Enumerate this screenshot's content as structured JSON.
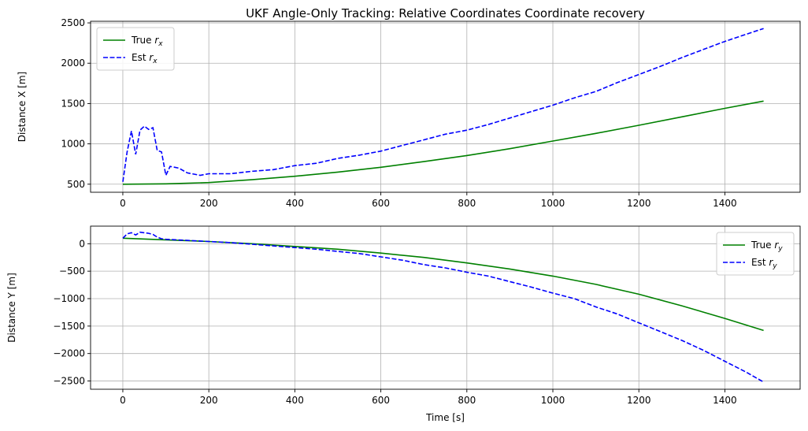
{
  "chart_data": [
    {
      "type": "line",
      "title": "UKF Angle-Only Tracking: Relative Coordinates Coordinate recovery",
      "xlabel": "",
      "ylabel": "Distance X [m]",
      "xlim": [
        -75,
        1575
      ],
      "ylim": [
        400,
        2520
      ],
      "xticks": [
        0,
        200,
        400,
        600,
        800,
        1000,
        1200,
        1400
      ],
      "yticks": [
        500,
        1000,
        1500,
        2000,
        2500
      ],
      "grid": true,
      "legend": "upper-left",
      "series": [
        {
          "name": "True r",
          "subscript": "x",
          "color": "#008000",
          "dash": "solid",
          "x": [
            0,
            100,
            200,
            300,
            400,
            500,
            600,
            700,
            800,
            900,
            1000,
            1100,
            1200,
            1300,
            1400,
            1490
          ],
          "y": [
            500,
            505,
            520,
            555,
            598,
            650,
            710,
            780,
            855,
            940,
            1035,
            1130,
            1230,
            1335,
            1440,
            1530
          ]
        },
        {
          "name": "Est r",
          "subscript": "x",
          "color": "#0000ff",
          "dash": "dashed",
          "x": [
            0,
            10,
            20,
            30,
            40,
            50,
            60,
            70,
            80,
            90,
            100,
            110,
            130,
            150,
            180,
            200,
            250,
            300,
            350,
            400,
            450,
            500,
            550,
            600,
            650,
            700,
            750,
            800,
            850,
            900,
            950,
            1000,
            1050,
            1100,
            1150,
            1200,
            1250,
            1300,
            1350,
            1400,
            1450,
            1490
          ],
          "y": [
            530,
            900,
            1160,
            870,
            1170,
            1220,
            1180,
            1200,
            920,
            900,
            610,
            720,
            700,
            640,
            610,
            630,
            630,
            660,
            680,
            730,
            760,
            820,
            860,
            910,
            980,
            1050,
            1120,
            1170,
            1240,
            1320,
            1400,
            1480,
            1570,
            1650,
            1760,
            1860,
            1960,
            2070,
            2170,
            2270,
            2360,
            2430
          ]
        }
      ]
    },
    {
      "type": "line",
      "title": "",
      "xlabel": "Time [s]",
      "ylabel": "Distance Y [m]",
      "xlim": [
        -75,
        1575
      ],
      "ylim": [
        -2650,
        320
      ],
      "xticks": [
        0,
        200,
        400,
        600,
        800,
        1000,
        1200,
        1400
      ],
      "yticks": [
        0,
        -500,
        -1000,
        -1500,
        -2000,
        -2500
      ],
      "grid": true,
      "legend": "upper-right",
      "series": [
        {
          "name": "True r",
          "subscript": "y",
          "color": "#008000",
          "dash": "solid",
          "x": [
            0,
            100,
            200,
            300,
            400,
            500,
            600,
            700,
            800,
            900,
            1000,
            1100,
            1200,
            1300,
            1400,
            1490
          ],
          "y": [
            100,
            70,
            40,
            0,
            -50,
            -100,
            -170,
            -250,
            -350,
            -460,
            -590,
            -740,
            -920,
            -1130,
            -1360,
            -1580
          ]
        },
        {
          "name": "Est r",
          "subscript": "y",
          "color": "#0000ff",
          "dash": "dashed",
          "x": [
            0,
            10,
            20,
            30,
            40,
            50,
            60,
            70,
            80,
            90,
            100,
            150,
            200,
            250,
            300,
            350,
            400,
            450,
            500,
            550,
            600,
            650,
            700,
            750,
            800,
            850,
            900,
            950,
            1000,
            1050,
            1100,
            1150,
            1200,
            1250,
            1300,
            1350,
            1400,
            1450,
            1490
          ],
          "y": [
            100,
            180,
            200,
            160,
            210,
            200,
            190,
            170,
            120,
            90,
            80,
            60,
            40,
            20,
            -10,
            -40,
            -70,
            -100,
            -140,
            -180,
            -240,
            -300,
            -380,
            -440,
            -520,
            -590,
            -690,
            -790,
            -900,
            -1000,
            -1150,
            -1280,
            -1440,
            -1600,
            -1760,
            -1940,
            -2140,
            -2340,
            -2520
          ]
        }
      ]
    }
  ]
}
